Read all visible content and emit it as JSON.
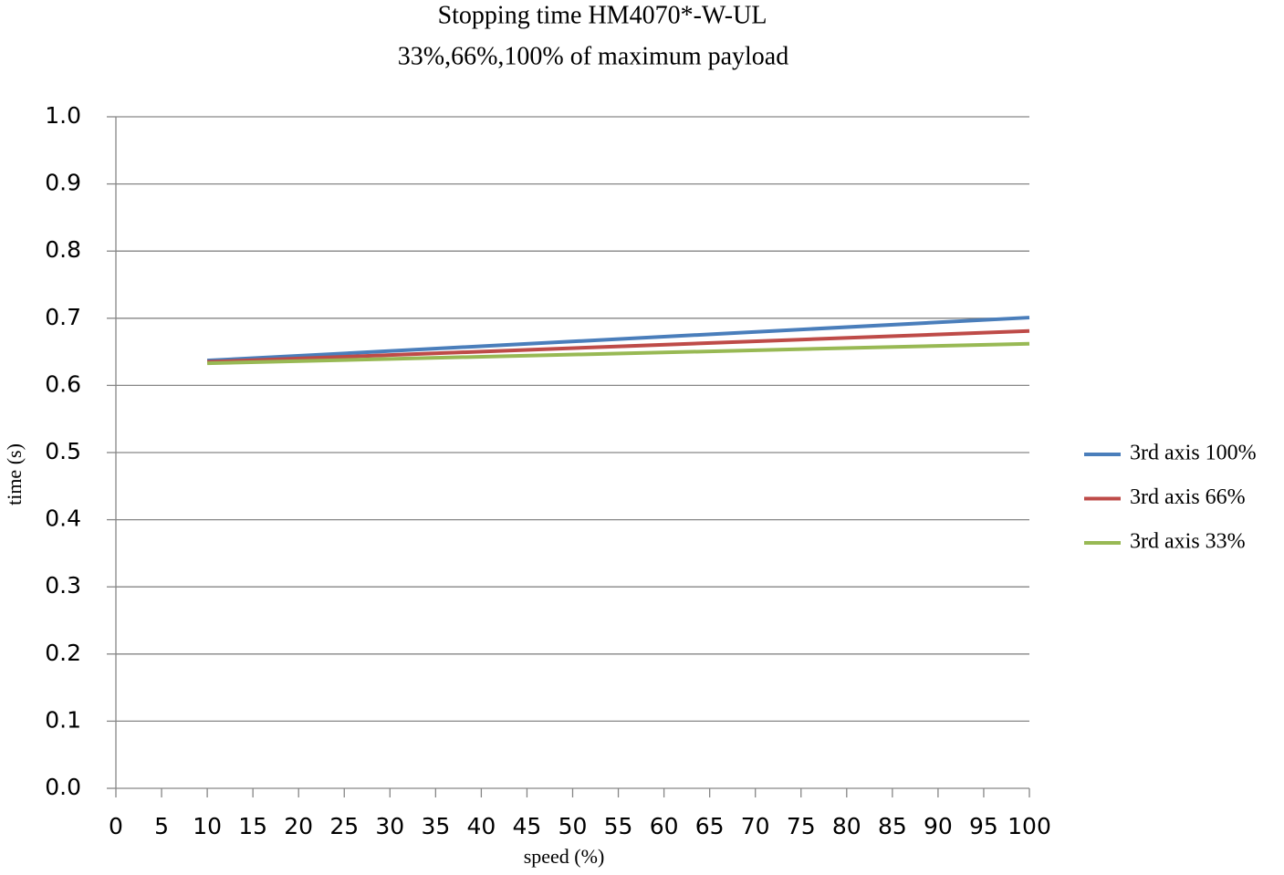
{
  "chart_data": {
    "type": "line",
    "title": "Stopping time HM4070*-W-UL",
    "subtitle": "33%,66%,100% of maximum payload",
    "x_label": "speed (%)",
    "y_label": "time (s)",
    "x": [
      10,
      100
    ],
    "series": [
      {
        "name": "3rd axis 100%",
        "color": "#4a7ebb",
        "values": [
          0.637,
          0.701
        ]
      },
      {
        "name": "3rd axis 66%",
        "color": "#be4b48",
        "values": [
          0.635,
          0.681
        ]
      },
      {
        "name": "3rd axis 33%",
        "color": "#98b954",
        "values": [
          0.633,
          0.662
        ]
      }
    ],
    "xlim": [
      0,
      100
    ],
    "xticks": [
      0,
      5,
      10,
      15,
      20,
      25,
      30,
      35,
      40,
      45,
      50,
      55,
      60,
      65,
      70,
      75,
      80,
      85,
      90,
      95,
      100
    ],
    "ylim": [
      0,
      1
    ],
    "yticks": [
      {
        "value": 0,
        "label": "0.0"
      },
      0.1,
      0.2,
      0.3,
      0.4,
      0.5,
      0.6,
      0.7,
      0.8,
      0.9,
      {
        "value": 1,
        "label": "1.0"
      }
    ],
    "grid": true,
    "legend": "right"
  }
}
